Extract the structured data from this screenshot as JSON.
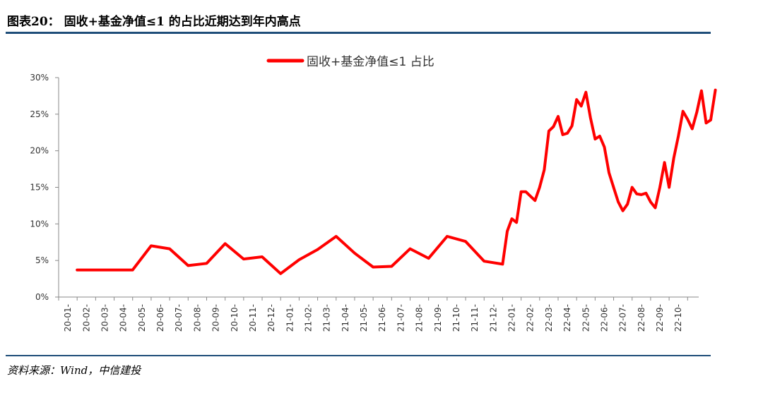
{
  "header": {
    "title": "图表20： 固收+基金净值≤1 的占比近期达到年内高点"
  },
  "footer": {
    "source": "资料来源：Wind，中信建投"
  },
  "colors": {
    "line": "#ff0000",
    "rule": "#1f4e79",
    "axis": "#888888"
  },
  "chart_data": {
    "type": "line",
    "title": "",
    "xlabel": "",
    "ylabel": "",
    "ylim": [
      0,
      0.3
    ],
    "y_ticks": [
      0,
      0.05,
      0.1,
      0.15,
      0.2,
      0.25,
      0.3
    ],
    "y_tick_labels": [
      "0%",
      "5%",
      "10%",
      "15%",
      "20%",
      "25%",
      "30%"
    ],
    "grid": false,
    "legend": "top-center",
    "x_tick_labels": [
      "20-01-",
      "20-02-",
      "20-03-",
      "20-04-",
      "20-05-",
      "20-06-",
      "20-07-",
      "20-08-",
      "20-09-",
      "20-10-",
      "20-11-",
      "20-12-",
      "21-01-",
      "21-02-",
      "21-03-",
      "21-04-",
      "21-05-",
      "21-06-",
      "21-07-",
      "21-08-",
      "21-09-",
      "21-10-",
      "21-11-",
      "21-12-",
      "22-01-",
      "22-02-",
      "22-03-",
      "22-04-",
      "22-05-",
      "22-06-",
      "22-07-",
      "22-08-",
      "22-09-",
      "22-10-"
    ],
    "x_range": [
      0,
      34.6
    ],
    "series": [
      {
        "name": "固收+基金净值≤1 占比",
        "points": [
          [
            1.0,
            0.037
          ],
          [
            2.0,
            0.037
          ],
          [
            3.0,
            0.037
          ],
          [
            4.0,
            0.037
          ],
          [
            5.0,
            0.07
          ],
          [
            6.0,
            0.066
          ],
          [
            7.0,
            0.043
          ],
          [
            8.0,
            0.046
          ],
          [
            9.0,
            0.073
          ],
          [
            10.0,
            0.052
          ],
          [
            11.0,
            0.055
          ],
          [
            12.0,
            0.032
          ],
          [
            13.0,
            0.051
          ],
          [
            14.0,
            0.065
          ],
          [
            15.0,
            0.083
          ],
          [
            16.0,
            0.06
          ],
          [
            17.0,
            0.041
          ],
          [
            18.0,
            0.042
          ],
          [
            19.0,
            0.066
          ],
          [
            20.0,
            0.053
          ],
          [
            21.0,
            0.083
          ],
          [
            22.0,
            0.076
          ],
          [
            23.0,
            0.049
          ],
          [
            24.0,
            0.045
          ],
          [
            24.25,
            0.09
          ],
          [
            24.5,
            0.107
          ],
          [
            24.75,
            0.102
          ],
          [
            25.0,
            0.144
          ],
          [
            25.25,
            0.144
          ],
          [
            25.5,
            0.138
          ],
          [
            25.75,
            0.132
          ],
          [
            26.0,
            0.15
          ],
          [
            26.25,
            0.174
          ],
          [
            26.5,
            0.227
          ],
          [
            26.75,
            0.233
          ],
          [
            27.0,
            0.247
          ],
          [
            27.25,
            0.222
          ],
          [
            27.5,
            0.224
          ],
          [
            27.75,
            0.234
          ],
          [
            28.0,
            0.27
          ],
          [
            28.25,
            0.261
          ],
          [
            28.5,
            0.28
          ],
          [
            28.75,
            0.245
          ],
          [
            29.0,
            0.216
          ],
          [
            29.25,
            0.22
          ],
          [
            29.5,
            0.205
          ],
          [
            29.75,
            0.17
          ],
          [
            30.0,
            0.15
          ],
          [
            30.25,
            0.13
          ],
          [
            30.5,
            0.118
          ],
          [
            30.75,
            0.127
          ],
          [
            31.0,
            0.15
          ],
          [
            31.25,
            0.141
          ],
          [
            31.5,
            0.14
          ],
          [
            31.75,
            0.142
          ],
          [
            32.0,
            0.13
          ],
          [
            32.25,
            0.122
          ],
          [
            32.5,
            0.15
          ],
          [
            32.75,
            0.184
          ],
          [
            33.0,
            0.15
          ],
          [
            33.25,
            0.19
          ],
          [
            33.5,
            0.22
          ],
          [
            33.75,
            0.254
          ],
          [
            34.0,
            0.243
          ],
          [
            34.25,
            0.23
          ],
          [
            34.5,
            0.253
          ],
          [
            34.75,
            0.282
          ],
          [
            35.0,
            0.238
          ],
          [
            35.25,
            0.242
          ],
          [
            35.5,
            0.283
          ]
        ]
      }
    ]
  }
}
